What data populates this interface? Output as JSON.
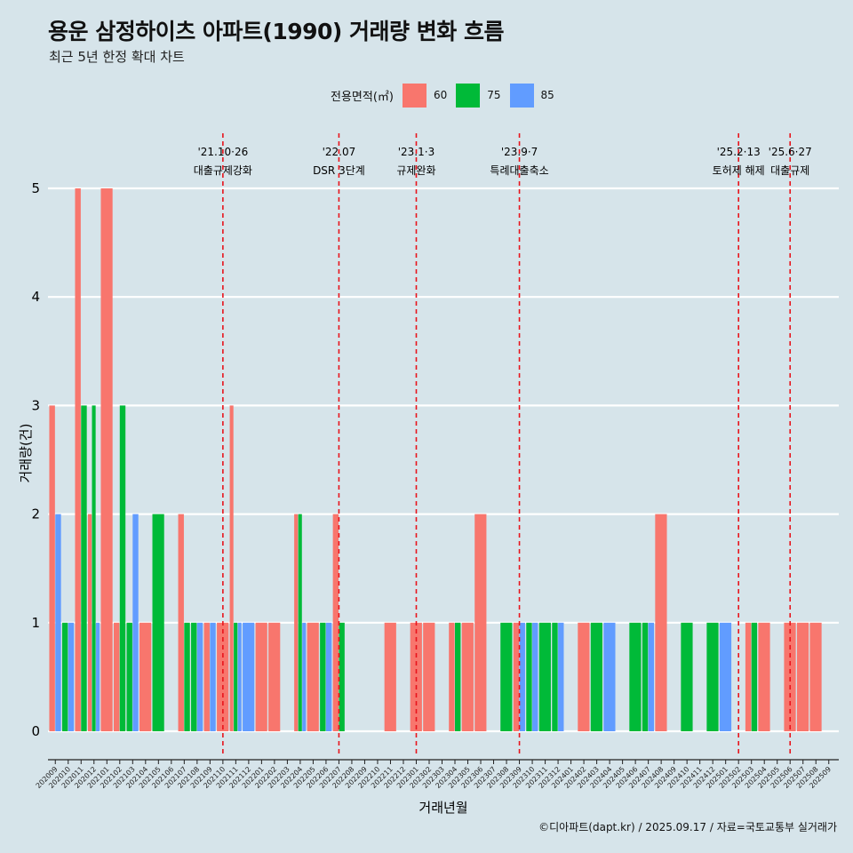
{
  "title": "용운 삼정하이츠 아파트(1990) 거래량 변화 흐름",
  "subtitle": "최근 5년 한정 확대 차트",
  "caption": "©디아파트(dapt.kr) / 2025.09.17 / 자료=국토교통부 실거래가",
  "colors": {
    "60": "#f8766d",
    "75": "#00ba38",
    "85": "#619cff",
    "background": "#d6e4ea",
    "event_line": "#e8141c"
  },
  "chart_data": {
    "type": "bar",
    "title": "용운 삼정하이츠 아파트(1990) 거래량 변화 흐름",
    "subtitle": "최근 5년 한정 확대 차트",
    "xlabel": "거래년월",
    "ylabel": "거래량(건)",
    "ylim": [
      0,
      5
    ],
    "yticks": [
      0,
      1,
      2,
      3,
      4,
      5
    ],
    "grid": true,
    "legend": {
      "title": "전용면적(㎡)",
      "position": "top",
      "entries": [
        "60",
        "75",
        "85"
      ]
    },
    "categories": [
      "202009",
      "202010",
      "202011",
      "202012",
      "202101",
      "202102",
      "202103",
      "202104",
      "202105",
      "202106",
      "202107",
      "202108",
      "202109",
      "202110",
      "202111",
      "202112",
      "202201",
      "202202",
      "202203",
      "202204",
      "202205",
      "202206",
      "202207",
      "202208",
      "202209",
      "202210",
      "202211",
      "202212",
      "202301",
      "202302",
      "202303",
      "202304",
      "202305",
      "202306",
      "202307",
      "202308",
      "202309",
      "202310",
      "202311",
      "202312",
      "202401",
      "202402",
      "202403",
      "202404",
      "202405",
      "202406",
      "202407",
      "202408",
      "202409",
      "202410",
      "202411",
      "202412",
      "202501",
      "202502",
      "202503",
      "202504",
      "202505",
      "202506",
      "202507",
      "202508",
      "202509"
    ],
    "x_tick_labels": [
      "202009",
      "202010",
      "202011",
      "202012",
      "202101",
      "202102",
      "202103",
      "202104",
      "202105",
      "202106",
      "202107",
      "202108",
      "202109",
      "202110",
      "202111",
      "202112",
      "202201",
      "202202",
      "202203",
      "202204",
      "202205",
      "202206",
      "202207",
      "202208",
      "202209",
      "202210",
      "202211",
      "202212",
      "202301",
      "202302",
      "202303",
      "202304",
      "202305",
      "202306",
      "202307",
      "202308",
      "202309",
      "202310",
      "202311",
      "202312",
      "202401",
      "202402",
      "202403",
      "202404",
      "202405",
      "202406",
      "202407",
      "202408",
      "202409",
      "202410",
      "202411",
      "202412",
      "202501",
      "202502",
      "202503",
      "202504",
      "202505",
      "202506",
      "202507",
      "202508",
      "202509"
    ],
    "series": [
      {
        "name": "60",
        "values": [
          3,
          0,
          5,
          2,
          5,
          1,
          0,
          1,
          0,
          0,
          2,
          0,
          1,
          1,
          3,
          0,
          1,
          1,
          0,
          2,
          1,
          0,
          2,
          0,
          0,
          0,
          1,
          0,
          1,
          1,
          0,
          1,
          1,
          2,
          0,
          0,
          1,
          0,
          0,
          0,
          0,
          1,
          0,
          0,
          0,
          0,
          0,
          2,
          0,
          0,
          0,
          0,
          0,
          0,
          1,
          1,
          0,
          1,
          1,
          1,
          0
        ]
      },
      {
        "name": "75",
        "values": [
          0,
          1,
          3,
          3,
          0,
          3,
          1,
          0,
          2,
          0,
          1,
          1,
          0,
          0,
          1,
          0,
          0,
          0,
          0,
          2,
          0,
          1,
          1,
          0,
          0,
          0,
          0,
          0,
          0,
          0,
          0,
          1,
          0,
          0,
          0,
          1,
          0,
          1,
          1,
          1,
          0,
          0,
          1,
          0,
          0,
          1,
          1,
          0,
          0,
          1,
          0,
          1,
          0,
          0,
          1,
          0,
          0,
          0,
          0,
          0,
          0
        ]
      },
      {
        "name": "85",
        "values": [
          2,
          1,
          0,
          1,
          0,
          0,
          2,
          0,
          0,
          0,
          0,
          1,
          1,
          0,
          1,
          1,
          0,
          0,
          0,
          1,
          0,
          1,
          0,
          0,
          0,
          0,
          0,
          0,
          0,
          0,
          0,
          0,
          0,
          0,
          0,
          0,
          1,
          1,
          0,
          1,
          0,
          0,
          0,
          1,
          0,
          0,
          1,
          0,
          0,
          0,
          0,
          0,
          1,
          0,
          0,
          0,
          0,
          0,
          0,
          0,
          0
        ]
      }
    ],
    "events": [
      {
        "category": "202110",
        "date": "'21.10·26",
        "label": "대출규제강화"
      },
      {
        "category": "202207",
        "date": "'22.07",
        "label": "DSR 3단계"
      },
      {
        "category": "202301",
        "date": "'23.1·3",
        "label": "규제완화"
      },
      {
        "category": "202309",
        "date": "'23.9·7",
        "label": "특례대출축소"
      },
      {
        "category": "202502",
        "date": "'25.2·13",
        "label": "토허제 해제"
      },
      {
        "category": "202506",
        "date": "'25.6·27",
        "label": "대출규제"
      }
    ]
  }
}
